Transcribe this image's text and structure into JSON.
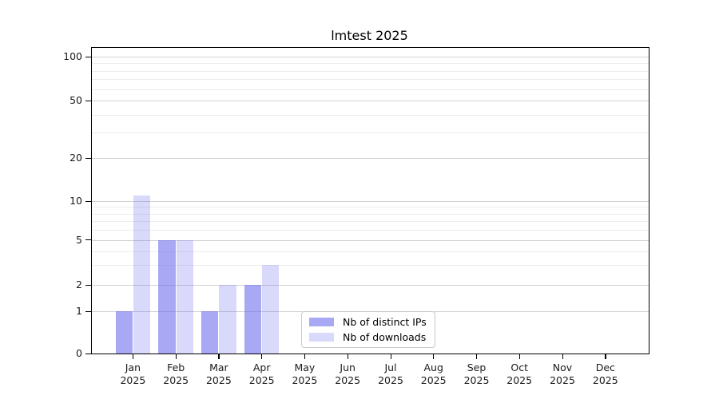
{
  "chart_data": {
    "type": "bar",
    "title": "lmtest 2025",
    "categories": [
      "Jan",
      "Feb",
      "Mar",
      "Apr",
      "May",
      "Jun",
      "Jul",
      "Aug",
      "Sep",
      "Oct",
      "Nov",
      "Dec"
    ],
    "x_year": "2025",
    "series": [
      {
        "name": "Nb of distinct IPs",
        "values": [
          1,
          5,
          1,
          2,
          0,
          0,
          0,
          0,
          0,
          0,
          0,
          0
        ]
      },
      {
        "name": "Nb of downloads",
        "values": [
          11,
          5,
          2,
          3,
          0,
          0,
          0,
          0,
          0,
          0,
          0,
          0
        ]
      }
    ],
    "y_axis": {
      "ticks_major": [
        0,
        1,
        2,
        5,
        10,
        20,
        50,
        100
      ],
      "ticks_minor": [
        3,
        4,
        6,
        7,
        8,
        9,
        30,
        40,
        60,
        70,
        80,
        90
      ],
      "scale": "log above 1, linear between 0 and 1",
      "anchors": {
        "0": 1.0,
        "1": 0.8624,
        "2": 0.7762,
        "3": 0.7107,
        "4": 0.6648,
        "5": 0.6285,
        "6": 0.5955,
        "7": 0.5671,
        "8": 0.5425,
        "9": 0.5206,
        "10": 0.5021,
        "20": 0.3603,
        "30": 0.277,
        "40": 0.218,
        "50": 0.1723,
        "60": 0.1345,
        "70": 0.1026,
        "80": 0.0749,
        "90": 0.0507,
        "100": 0.0287
      }
    },
    "legend": {
      "items": [
        "Nb of distinct IPs",
        "Nb of downloads"
      ],
      "position": "inside bottom, left of center"
    },
    "grid": true
  },
  "colors": {
    "bar_base": "#6666ee",
    "bar_dark_alpha": 0.57,
    "bar_light_alpha": 0.25,
    "bar_dark_effective": "#a8a8f5",
    "bar_light_effective": "#d9d9f8",
    "grid_major": "#d2d2d2",
    "grid_minor": "#ededed",
    "axis": "#000000",
    "text": "#1a1a1a",
    "legend_border": "#c9c9c9"
  }
}
